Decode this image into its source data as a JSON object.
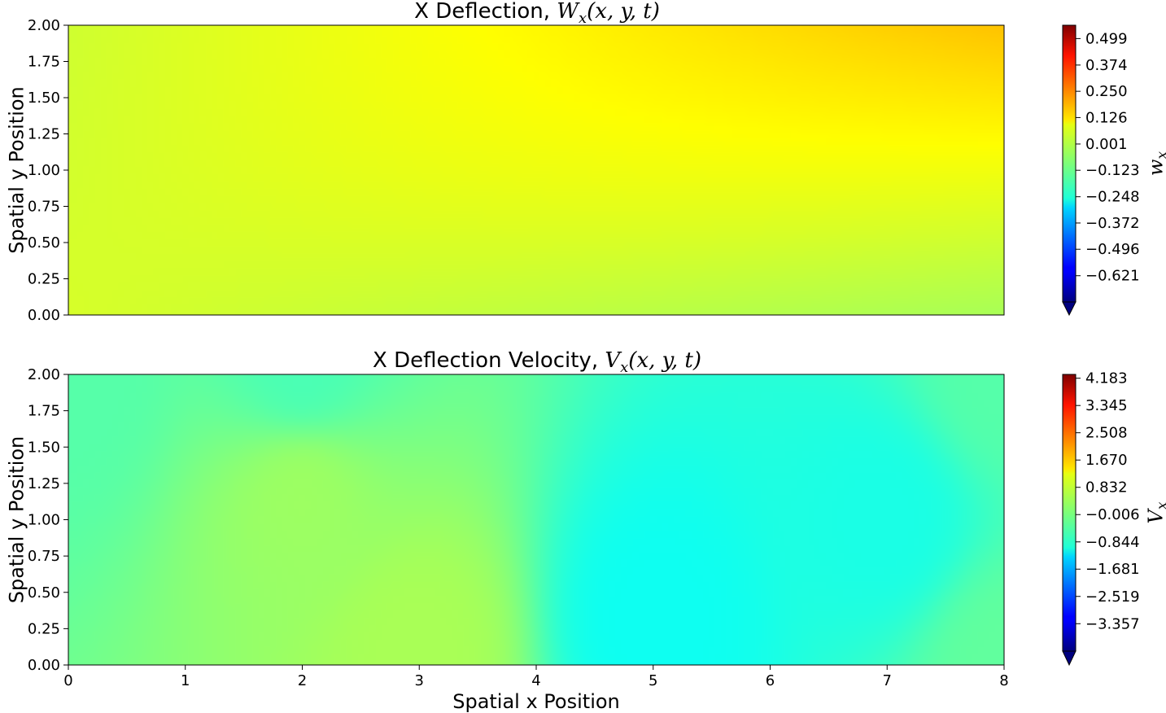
{
  "chart_data": [
    {
      "type": "heatmap",
      "colormap": "jet",
      "title": "X Deflection, W_x(x, y, t)",
      "title_text": "X Deflection, ",
      "title_symbol": "W",
      "title_sub": "x",
      "title_args": "(x, y, t)",
      "xlabel": "",
      "ylabel": "Spatial y Position",
      "xlim": [
        0,
        8
      ],
      "ylim": [
        0,
        2
      ],
      "x_ticks_visible": false,
      "y_ticks": [
        "0.00",
        "0.25",
        "0.50",
        "0.75",
        "1.00",
        "1.25",
        "1.50",
        "1.75",
        "2.00"
      ],
      "colorbar": {
        "label_symbol": "w",
        "label_sub": "x",
        "range": [
          -0.745,
          0.562
        ],
        "ticks": [
          -0.621,
          -0.496,
          -0.372,
          -0.248,
          -0.123,
          0.001,
          0.126,
          0.25,
          0.374,
          0.499
        ],
        "tick_labels": [
          "−0.621",
          "−0.496",
          "−0.372",
          "−0.248",
          "−0.123",
          "0.001",
          "0.126",
          "0.250",
          "0.374",
          "0.499"
        ],
        "extend": "min"
      },
      "field_samples": {
        "description_values": "approximate field values at corners (x,y)",
        "points": [
          {
            "x": 0,
            "y": 0,
            "value": 0.02
          },
          {
            "x": 8,
            "y": 0,
            "value": -0.04
          },
          {
            "x": 0,
            "y": 2,
            "value": 0.01
          },
          {
            "x": 8,
            "y": 2,
            "value": 0.15
          }
        ]
      }
    },
    {
      "type": "heatmap",
      "colormap": "jet",
      "title": "X Deflection Velocity, V_x(x, y, t)",
      "title_text": "X Deflection Velocity, ",
      "title_symbol": "V",
      "title_sub": "x",
      "title_args": "(x, y, t)",
      "xlabel": "Spatial x Position",
      "ylabel": "Spatial y Position",
      "xlim": [
        0,
        8
      ],
      "ylim": [
        0,
        2
      ],
      "x_ticks": [
        "0",
        "1",
        "2",
        "3",
        "4",
        "5",
        "6",
        "7",
        "8"
      ],
      "y_ticks": [
        "0.00",
        "0.25",
        "0.50",
        "0.75",
        "1.00",
        "1.25",
        "1.50",
        "1.75",
        "2.00"
      ],
      "colorbar": {
        "label_symbol": "V",
        "label_sub": "x",
        "range": [
          -4.2,
          4.3
        ],
        "ticks": [
          -3.357,
          -2.519,
          -1.681,
          -0.844,
          -0.006,
          0.832,
          1.67,
          2.508,
          3.345,
          4.183
        ],
        "tick_labels": [
          "−3.357",
          "−2.519",
          "−1.681",
          "−0.844",
          "−0.006",
          "0.832",
          "1.670",
          "2.508",
          "3.345",
          "4.183"
        ],
        "extend": "min"
      },
      "field_samples": {
        "description_values": "approximate field values at selected points (x,y)",
        "points": [
          {
            "x": 0,
            "y": 2,
            "value": -0.3
          },
          {
            "x": 2,
            "y": 2,
            "value": -0.4
          },
          {
            "x": 2,
            "y": 1.2,
            "value": 0.3
          },
          {
            "x": 3,
            "y": 0.1,
            "value": 0.4
          },
          {
            "x": 5,
            "y": 0.3,
            "value": -0.9
          },
          {
            "x": 7,
            "y": 1.0,
            "value": -0.8
          },
          {
            "x": 8,
            "y": 0,
            "value": -0.2
          },
          {
            "x": 8,
            "y": 2,
            "value": -0.3
          }
        ]
      }
    }
  ]
}
